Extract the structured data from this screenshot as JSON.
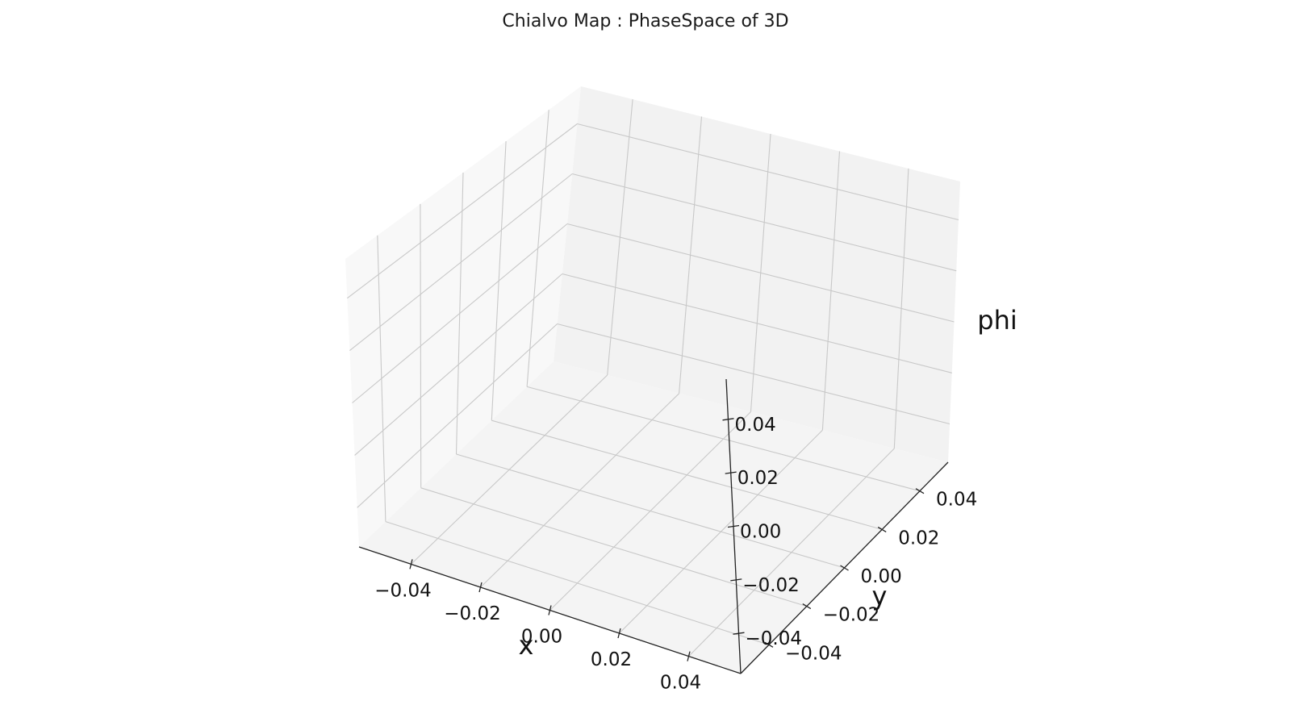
{
  "chart_data": {
    "type": "scatter",
    "projection": "3d",
    "title": "Chialvo Map : PhaseSpace of 3D",
    "xlabel": "x",
    "ylabel": "y",
    "zlabel": "phi",
    "xlim": [
      -0.055,
      0.055
    ],
    "ylim": [
      -0.055,
      0.055
    ],
    "zlim": [
      -0.055,
      0.055
    ],
    "x_ticks": [
      -0.04,
      -0.02,
      0.0,
      0.02,
      0.04
    ],
    "y_ticks": [
      -0.04,
      -0.02,
      0.0,
      0.02,
      0.04
    ],
    "z_ticks": [
      -0.04,
      -0.02,
      0.0,
      0.02,
      0.04
    ],
    "x_tick_labels": [
      "−0.04",
      "−0.02",
      "0.00",
      "0.02",
      "0.04"
    ],
    "y_tick_labels": [
      "−0.04",
      "−0.02",
      "0.00",
      "0.02",
      "0.04"
    ],
    "z_tick_labels": [
      "−0.04",
      "−0.02",
      "0.00",
      "0.02",
      "0.04"
    ],
    "grid": true,
    "series": [],
    "colors": {
      "pane_back": "#f2f2f2",
      "pane_side": "#f8f8f8",
      "pane_floor": "#f4f4f4",
      "grid": "#c8c8c8",
      "axis": "#222222"
    }
  }
}
